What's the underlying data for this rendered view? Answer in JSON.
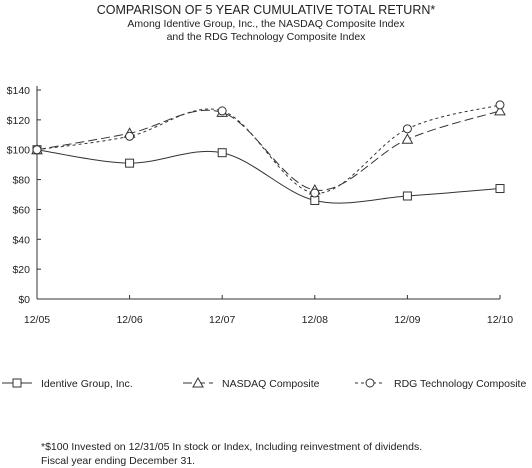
{
  "chart_data": {
    "type": "line",
    "title": "COMPARISON OF 5 YEAR CUMULATIVE TOTAL RETURN*",
    "subtitle_lines": [
      "Among Identive Group, Inc., the NASDAQ Composite Index",
      "and the RDG Technology Composite Index"
    ],
    "categories": [
      "12/05",
      "12/06",
      "12/07",
      "12/08",
      "12/09",
      "12/10"
    ],
    "y_ticks": [
      "$0",
      "$20",
      "$40",
      "$60",
      "$80",
      "$100",
      "$120",
      "$140"
    ],
    "ylim": [
      0,
      140
    ],
    "grid": false,
    "legend_position": "bottom",
    "series": [
      {
        "name": "Identive Group, Inc.",
        "marker": "square",
        "dash": "solid",
        "values": [
          100,
          91,
          98,
          66,
          69,
          74
        ]
      },
      {
        "name": "NASDAQ Composite",
        "marker": "triangle",
        "dash": "long-dash",
        "values": [
          100,
          111,
          125,
          73,
          107,
          126
        ]
      },
      {
        "name": "RDG Technology Composite",
        "marker": "circle",
        "dash": "short-dash",
        "values": [
          100,
          109,
          126,
          71,
          114,
          130
        ]
      }
    ]
  },
  "footnote": {
    "line1": "*$100 Invested on 12/31/05 In stock or Index, Including reinvestment of dividends.",
    "line2": "Fiscal year ending December 31."
  }
}
